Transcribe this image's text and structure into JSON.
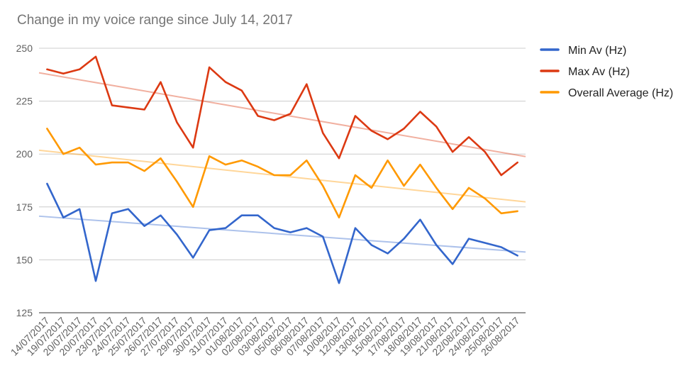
{
  "chart_data": {
    "type": "line",
    "title": "Change in my voice range since July 14, 2017",
    "xlabel": "",
    "ylabel": "",
    "ylim": [
      125,
      250
    ],
    "yticks": [
      125,
      150,
      175,
      200,
      225,
      250
    ],
    "grid": true,
    "legend_position": "right",
    "trendlines": true,
    "categories": [
      "14/07/2017",
      "19/07/2017",
      "20/07/2017",
      "20/07/2017",
      "23/07/2017",
      "24/07/2017",
      "25/07/2017",
      "26/07/2017",
      "27/07/2017",
      "29/07/2017",
      "30/07/2017",
      "31/07/2017",
      "01/08/2017",
      "02/08/2017",
      "03/08/2017",
      "05/08/2017",
      "06/08/2017",
      "07/08/2017",
      "10/08/2017",
      "12/08/2017",
      "13/08/2017",
      "15/08/2017",
      "17/08/2017",
      "18/08/2017",
      "19/08/2017",
      "21/08/2017",
      "22/08/2017",
      "24/08/2017",
      "25/08/2017",
      "26/08/2017"
    ],
    "series": [
      {
        "name": "Min Av (Hz)",
        "color": "#3366cc",
        "values": [
          186,
          170,
          174,
          140,
          172,
          174,
          166,
          171,
          162,
          151,
          164,
          165,
          171,
          171,
          165,
          163,
          165,
          161,
          139,
          165,
          157,
          153,
          160,
          169,
          157,
          148,
          160,
          158,
          156,
          152
        ]
      },
      {
        "name": "Max Av (Hz)",
        "color": "#dc3912",
        "values": [
          240,
          238,
          240,
          246,
          223,
          222,
          221,
          234,
          215,
          203,
          241,
          234,
          230,
          218,
          216,
          219,
          233,
          210,
          198,
          218,
          211,
          207,
          212,
          220,
          213,
          201,
          208,
          201,
          190,
          196
        ]
      },
      {
        "name": "Overall Average (Hz)",
        "color": "#ff9900",
        "values": [
          212,
          200,
          203,
          195,
          196,
          196,
          192,
          198,
          187,
          175,
          199,
          195,
          197,
          194,
          190,
          190,
          197,
          185,
          170,
          190,
          184,
          197,
          185,
          195,
          184,
          174,
          184,
          179,
          172,
          173
        ]
      }
    ]
  }
}
